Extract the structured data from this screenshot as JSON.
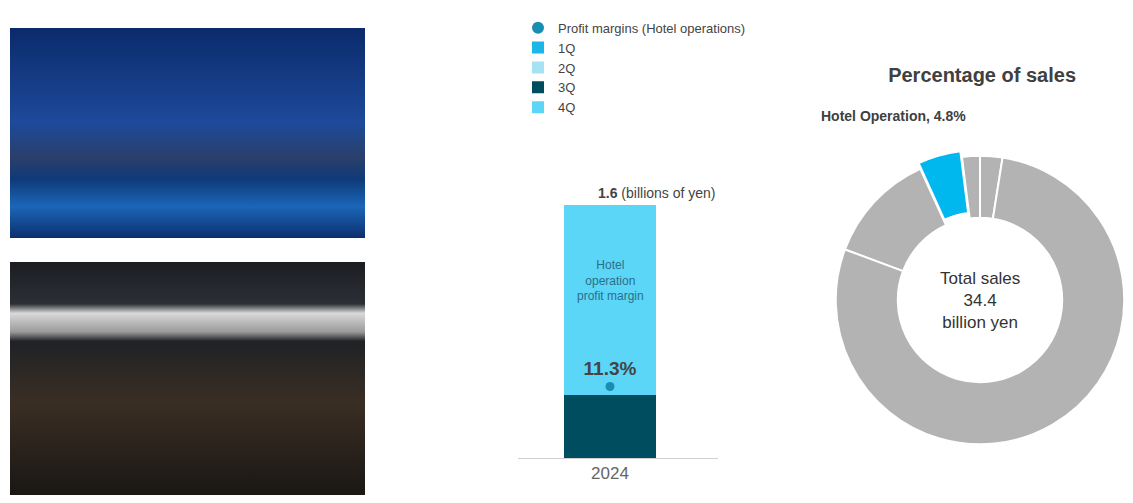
{
  "chart_data": [
    {
      "type": "bar",
      "stacked": true,
      "categories": [
        "2024"
      ],
      "series": [
        {
          "name": "1Q",
          "color": "#1ab8e8",
          "values": [
            0
          ]
        },
        {
          "name": "2Q",
          "color": "#a6e2f4",
          "values": [
            0
          ]
        },
        {
          "name": "3Q",
          "color": "#004d60",
          "values": [
            0.4
          ]
        },
        {
          "name": "4Q",
          "color": "#5cd6f6",
          "values": [
            1.2
          ]
        },
        {
          "name": "Profit margins (Hotel operations)",
          "type": "line",
          "marker": "circle",
          "color": "#1a8db3",
          "axis": "y2",
          "values": [
            11.3
          ],
          "value_labels": [
            "11.3%"
          ]
        }
      ],
      "ylim": [
        0,
        1.6
      ],
      "y2lim": [
        0,
        40
      ],
      "tick_labels": "x",
      "legend": "upper left",
      "total": {
        "value": 1.6,
        "label": "1.6",
        "unit": "(billions of yen)"
      },
      "annotation_lines": [
        "Hotel",
        "operation",
        "profit margin"
      ]
    },
    {
      "type": "pie",
      "title": "Percentage of sales",
      "categories": [
        null,
        null,
        "Hotel Operation",
        null,
        null
      ],
      "values": [
        2.5,
        2.0,
        4.8,
        12.5,
        78.2
      ],
      "value_labels": [
        null,
        null,
        "Hotel Operation, 4.8%",
        null,
        null
      ],
      "colors": [
        "#b3b3b3",
        "#b3b3b3",
        "#00b7ee",
        "#b3b3b3",
        "#b3b3b3"
      ],
      "center_text": {
        "label": "Total sales",
        "value": 34.4,
        "unit": "billion yen"
      }
    }
  ]
}
